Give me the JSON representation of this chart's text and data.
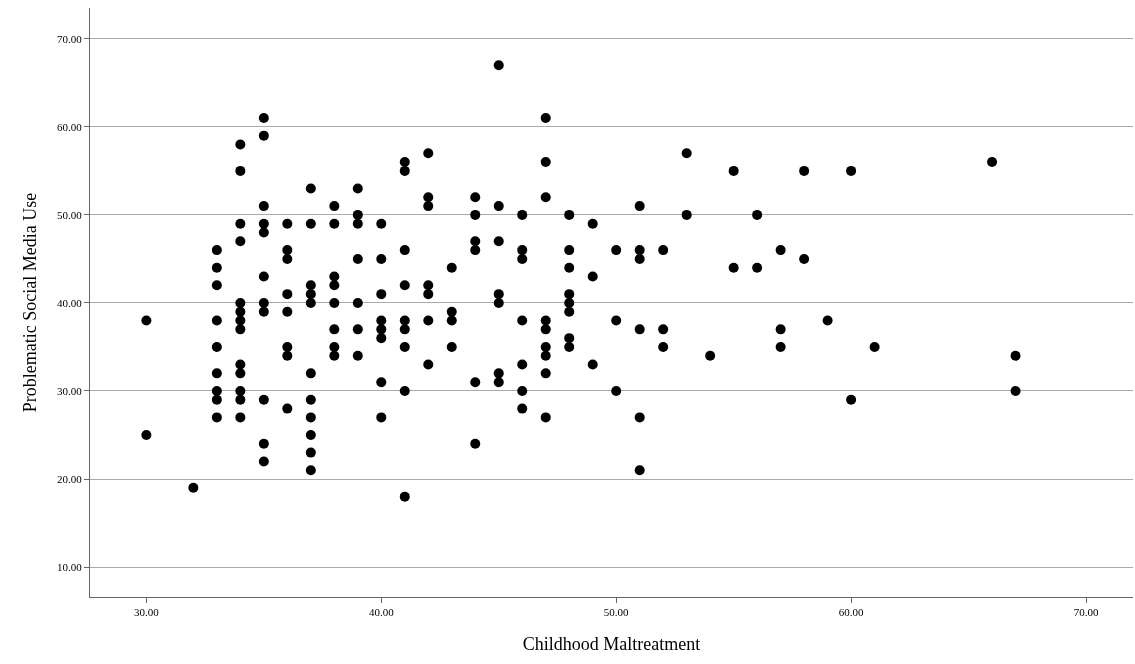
{
  "chart_data": {
    "type": "scatter",
    "xlabel": "Childhood Maltreatment",
    "ylabel": "Problematic Social Media Use",
    "x": [
      30,
      30,
      32,
      33,
      33,
      33,
      33,
      33,
      33,
      33,
      33,
      33,
      34,
      34,
      34,
      34,
      34,
      34,
      34,
      34,
      34,
      34,
      34,
      34,
      34,
      35,
      35,
      35,
      35,
      35,
      35,
      35,
      35,
      35,
      35,
      35,
      36,
      36,
      36,
      36,
      36,
      36,
      36,
      36,
      37,
      37,
      37,
      37,
      37,
      37,
      37,
      37,
      37,
      37,
      37,
      38,
      38,
      38,
      38,
      38,
      38,
      38,
      38,
      39,
      39,
      39,
      39,
      39,
      39,
      39,
      40,
      40,
      40,
      40,
      40,
      40,
      40,
      40,
      41,
      41,
      41,
      41,
      41,
      41,
      41,
      41,
      41,
      42,
      42,
      42,
      42,
      42,
      42,
      42,
      43,
      43,
      43,
      43,
      44,
      44,
      44,
      44,
      44,
      44,
      45,
      45,
      45,
      45,
      45,
      45,
      45,
      46,
      46,
      46,
      46,
      46,
      46,
      46,
      47,
      47,
      47,
      47,
      47,
      47,
      47,
      47,
      47,
      48,
      48,
      48,
      48,
      48,
      48,
      48,
      48,
      49,
      49,
      49,
      50,
      50,
      50,
      51,
      51,
      51,
      51,
      51,
      51,
      52,
      52,
      52,
      53,
      53,
      54,
      55,
      55,
      56,
      56,
      57,
      57,
      57,
      58,
      58,
      59,
      60,
      60,
      61,
      66,
      67,
      67
    ],
    "series": [
      {
        "color": "#000000",
        "values": [
          38,
          25,
          19,
          46,
          44,
          42,
          38,
          35,
          32,
          30,
          29,
          27,
          58,
          55,
          49,
          47,
          40,
          39,
          38,
          37,
          33,
          32,
          30,
          29,
          27,
          61,
          59,
          51,
          49,
          48,
          43,
          40,
          39,
          29,
          24,
          22,
          49,
          46,
          45,
          41,
          39,
          35,
          34,
          28,
          53,
          49,
          42,
          41,
          40,
          32,
          29,
          27,
          25,
          23,
          21,
          51,
          49,
          43,
          42,
          40,
          37,
          35,
          34,
          53,
          50,
          49,
          45,
          40,
          37,
          34,
          49,
          45,
          41,
          38,
          37,
          36,
          31,
          27,
          56,
          55,
          46,
          42,
          38,
          37,
          35,
          30,
          18,
          57,
          52,
          51,
          42,
          41,
          38,
          33,
          44,
          39,
          38,
          35,
          52,
          50,
          47,
          46,
          31,
          24,
          67,
          51,
          47,
          41,
          40,
          32,
          31,
          50,
          46,
          45,
          38,
          33,
          30,
          28,
          61,
          56,
          52,
          38,
          37,
          35,
          34,
          32,
          27,
          50,
          46,
          44,
          41,
          40,
          39,
          36,
          35,
          49,
          43,
          33,
          46,
          38,
          30,
          51,
          46,
          45,
          37,
          27,
          21,
          46,
          37,
          35,
          57,
          50,
          34,
          55,
          44,
          50,
          44,
          46,
          37,
          35,
          55,
          45,
          38,
          55,
          29,
          35,
          56,
          34,
          30
        ]
      }
    ],
    "xlim": [
      27.6,
      72
    ],
    "ylim": [
      6.6,
      73.5
    ],
    "xticks": [
      {
        "value": 30,
        "label": "30.00"
      },
      {
        "value": 40,
        "label": "40.00"
      },
      {
        "value": 50,
        "label": "50.00"
      },
      {
        "value": 60,
        "label": "60.00"
      },
      {
        "value": 70,
        "label": "70.00"
      }
    ],
    "yticks": [
      {
        "value": 10,
        "label": "10.00"
      },
      {
        "value": 20,
        "label": "20.00"
      },
      {
        "value": 30,
        "label": "30.00"
      },
      {
        "value": 40,
        "label": "40.00"
      },
      {
        "value": 50,
        "label": "50.00"
      },
      {
        "value": 60,
        "label": "60.00"
      },
      {
        "value": 70,
        "label": "70.00"
      }
    ],
    "grid": "y",
    "marker": "circle"
  }
}
